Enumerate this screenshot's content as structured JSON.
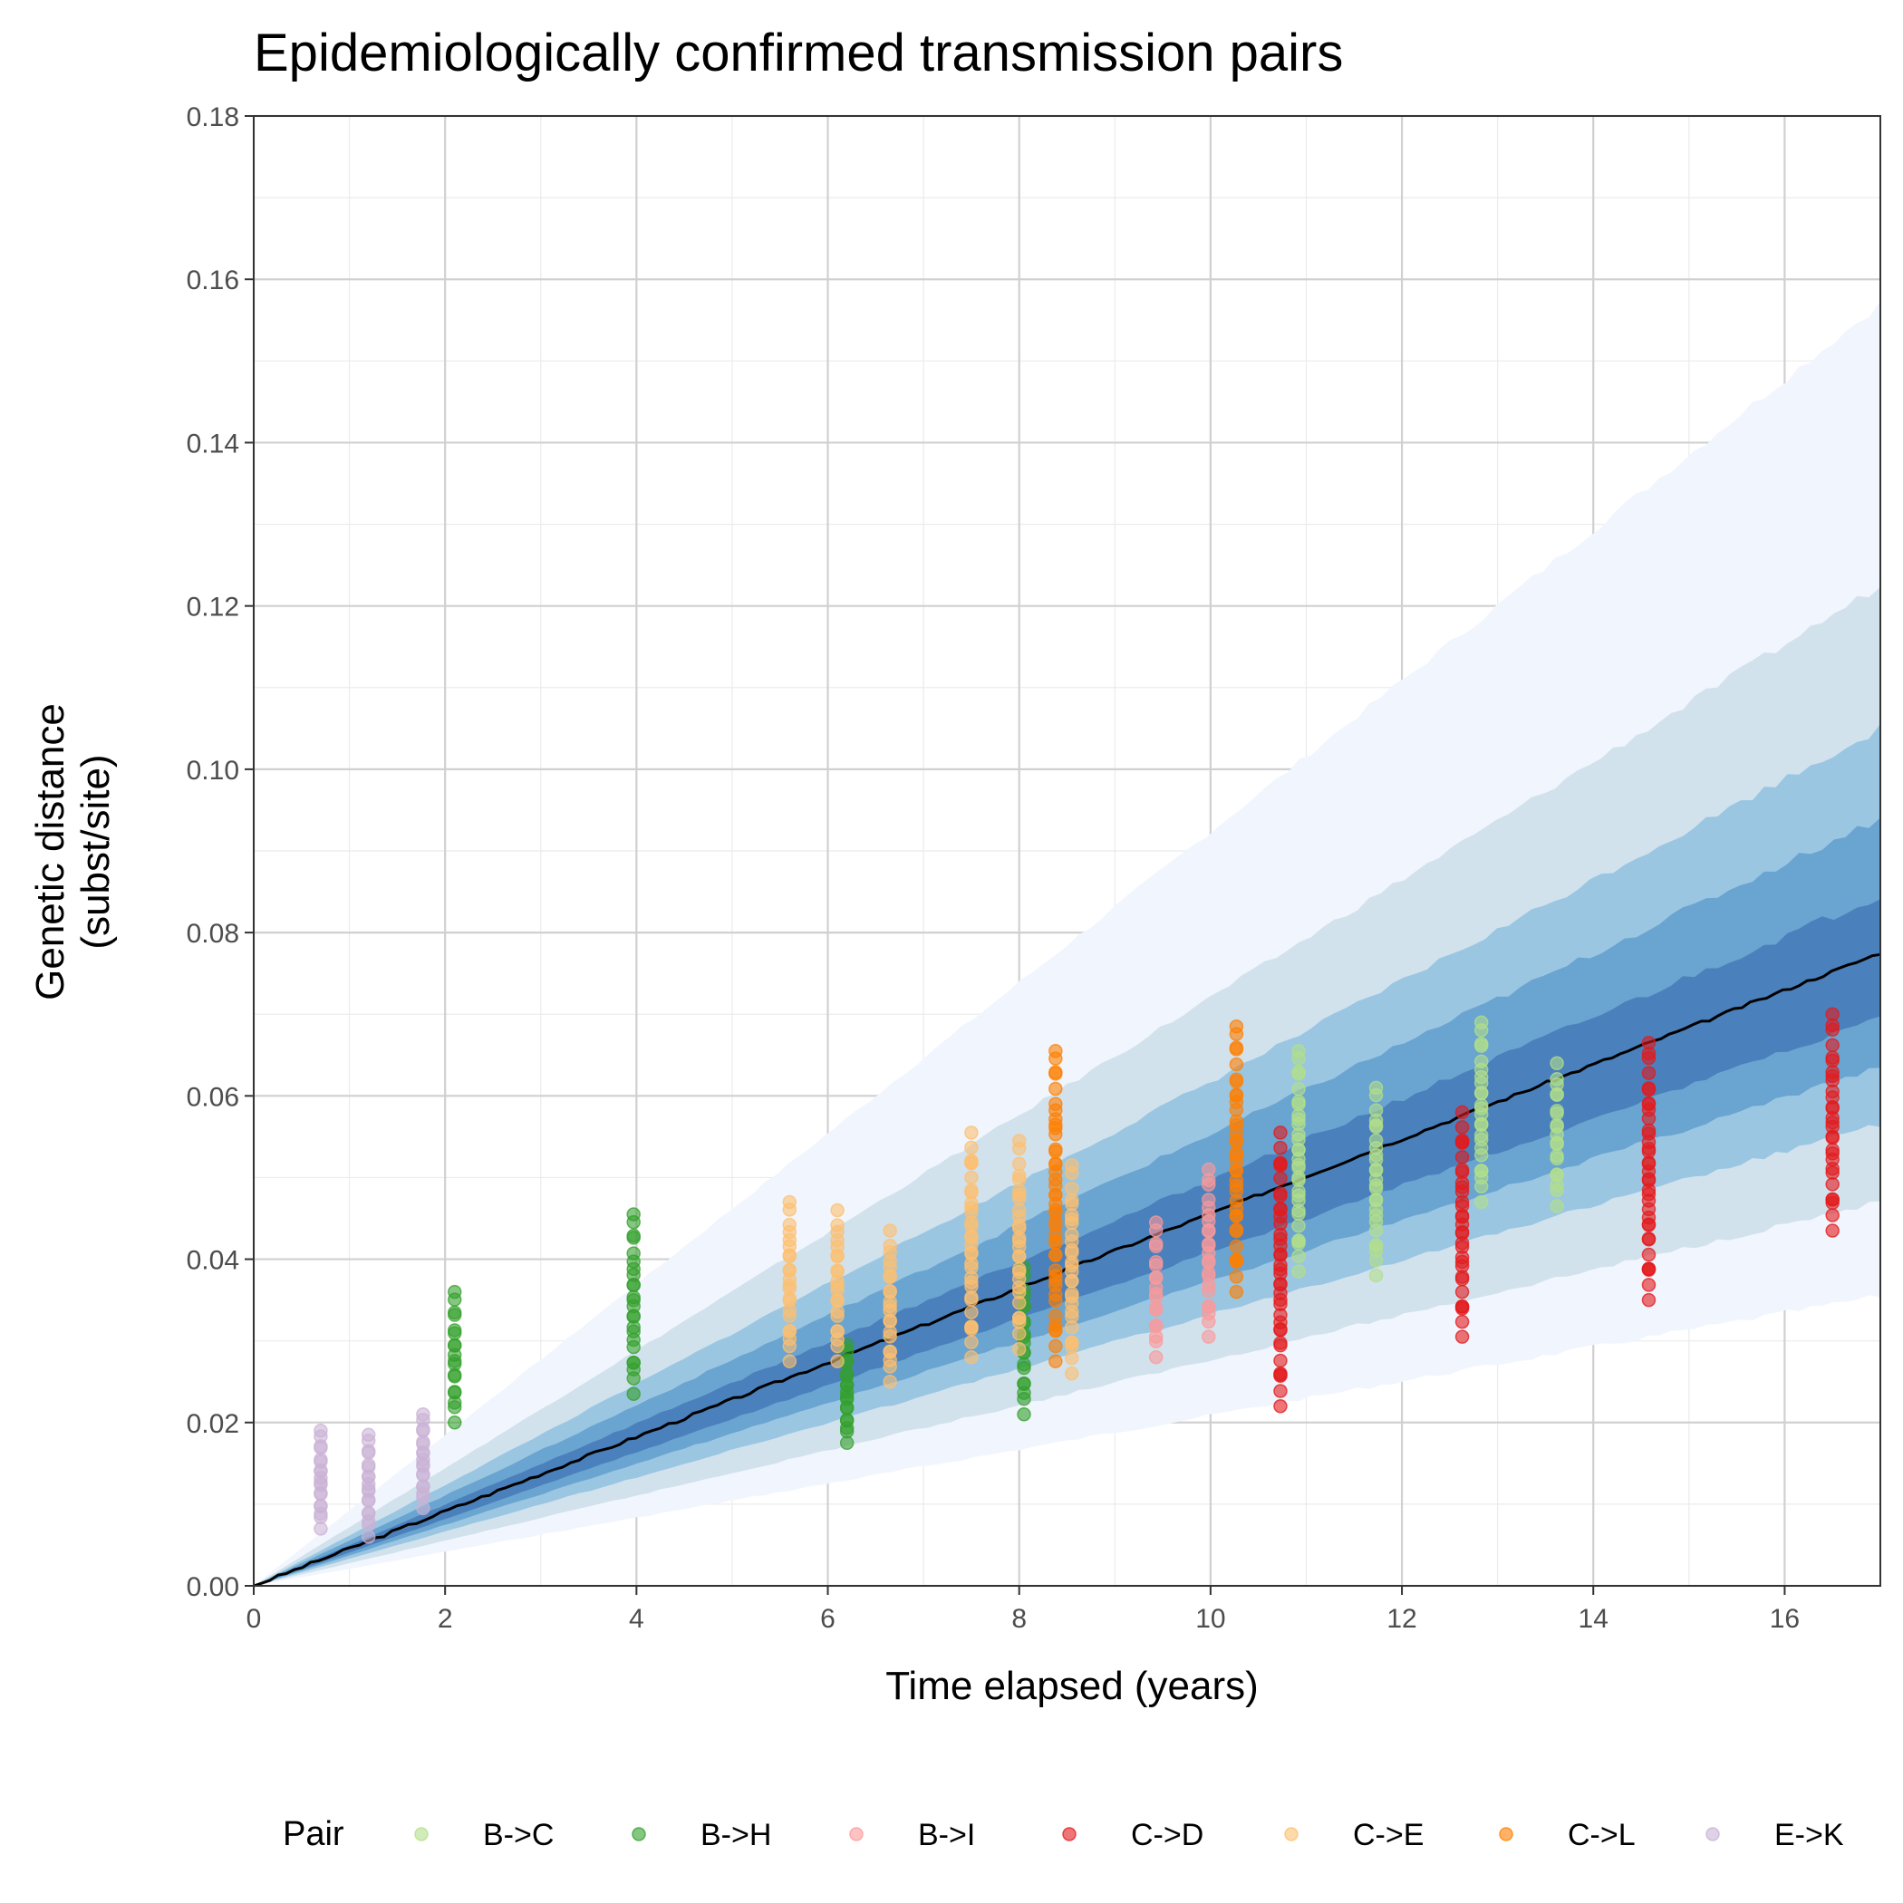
{
  "chart_data": {
    "type": "scatter",
    "title": "Epidemiologically confirmed transmission pairs",
    "xlabel": "Time elapsed (years)",
    "ylabel_lines": [
      "Genetic distance",
      "(subst/site)"
    ],
    "xlim": [
      0,
      17
    ],
    "ylim": [
      0,
      0.18
    ],
    "x_ticks": [
      0,
      2,
      4,
      6,
      8,
      10,
      12,
      14,
      16
    ],
    "x_tick_labels": [
      "0",
      "2",
      "4",
      "6",
      "8",
      "10",
      "12",
      "14",
      "16"
    ],
    "y_ticks": [
      0,
      0.02,
      0.04,
      0.06,
      0.08,
      0.1,
      0.12,
      0.14,
      0.16,
      0.18
    ],
    "y_tick_labels": [
      "0.00",
      "0.02",
      "0.04",
      "0.06",
      "0.08",
      "0.10",
      "0.12",
      "0.14",
      "0.16",
      "0.18"
    ],
    "grid": true,
    "legend_position": "bottom",
    "legend_title": "Pair",
    "median_line": {
      "color": "#000000",
      "x": [
        0,
        17
      ],
      "y": [
        0,
        0.0775
      ]
    },
    "uncertainty_bands": [
      {
        "color": "#f1f5fd",
        "lower_at_17": 0.0355,
        "upper_at_17": 0.157
      },
      {
        "color": "#d1e2ed",
        "lower_at_17": 0.047,
        "upper_at_17": 0.1225
      },
      {
        "color": "#9ac6e2",
        "lower_at_17": 0.0565,
        "upper_at_17": 0.105
      },
      {
        "color": "#6aa4d0",
        "lower_at_17": 0.0635,
        "upper_at_17": 0.094
      },
      {
        "color": "#4a80bb",
        "lower_at_17": 0.0695,
        "upper_at_17": 0.0845
      }
    ],
    "series": [
      {
        "name": "B->C",
        "color": "#b2df8a",
        "groups": [
          {
            "x": 10.92,
            "ymin": 0.0385,
            "ymax": 0.0655
          },
          {
            "x": 11.73,
            "ymin": 0.038,
            "ymax": 0.061
          },
          {
            "x": 12.83,
            "ymin": 0.047,
            "ymax": 0.069
          },
          {
            "x": 13.62,
            "ymin": 0.0465,
            "ymax": 0.064
          }
        ]
      },
      {
        "name": "B->H",
        "color": "#33a02c",
        "groups": [
          {
            "x": 2.1,
            "ymin": 0.02,
            "ymax": 0.036
          },
          {
            "x": 3.97,
            "ymin": 0.0235,
            "ymax": 0.0455
          },
          {
            "x": 6.2,
            "ymin": 0.0175,
            "ymax": 0.0295
          },
          {
            "x": 8.05,
            "ymin": 0.021,
            "ymax": 0.039
          }
        ]
      },
      {
        "name": "B->I",
        "color": "#fb9a99",
        "groups": [
          {
            "x": 9.43,
            "ymin": 0.028,
            "ymax": 0.0445
          },
          {
            "x": 9.98,
            "ymin": 0.0305,
            "ymax": 0.051
          }
        ]
      },
      {
        "name": "C->D",
        "color": "#e31a1c",
        "groups": [
          {
            "x": 10.73,
            "ymin": 0.022,
            "ymax": 0.0555
          },
          {
            "x": 12.63,
            "ymin": 0.0305,
            "ymax": 0.058
          },
          {
            "x": 14.58,
            "ymin": 0.035,
            "ymax": 0.0665
          },
          {
            "x": 16.5,
            "ymin": 0.0435,
            "ymax": 0.07
          }
        ]
      },
      {
        "name": "C->E",
        "color": "#fdbf6f",
        "groups": [
          {
            "x": 5.6,
            "ymin": 0.0275,
            "ymax": 0.047
          },
          {
            "x": 6.1,
            "ymin": 0.0275,
            "ymax": 0.046
          },
          {
            "x": 6.65,
            "ymin": 0.025,
            "ymax": 0.0435
          },
          {
            "x": 7.5,
            "ymin": 0.028,
            "ymax": 0.0555
          },
          {
            "x": 8.0,
            "ymin": 0.029,
            "ymax": 0.0545
          },
          {
            "x": 8.55,
            "ymin": 0.026,
            "ymax": 0.0515
          }
        ]
      },
      {
        "name": "C->L",
        "color": "#ff7f00",
        "groups": [
          {
            "x": 8.38,
            "ymin": 0.0275,
            "ymax": 0.0655
          },
          {
            "x": 10.27,
            "ymin": 0.036,
            "ymax": 0.0685
          }
        ]
      },
      {
        "name": "E->K",
        "color": "#cab2d6",
        "groups": [
          {
            "x": 0.7,
            "ymin": 0.007,
            "ymax": 0.019
          },
          {
            "x": 1.2,
            "ymin": 0.006,
            "ymax": 0.0185
          },
          {
            "x": 1.77,
            "ymin": 0.0095,
            "ymax": 0.021
          }
        ]
      }
    ]
  }
}
